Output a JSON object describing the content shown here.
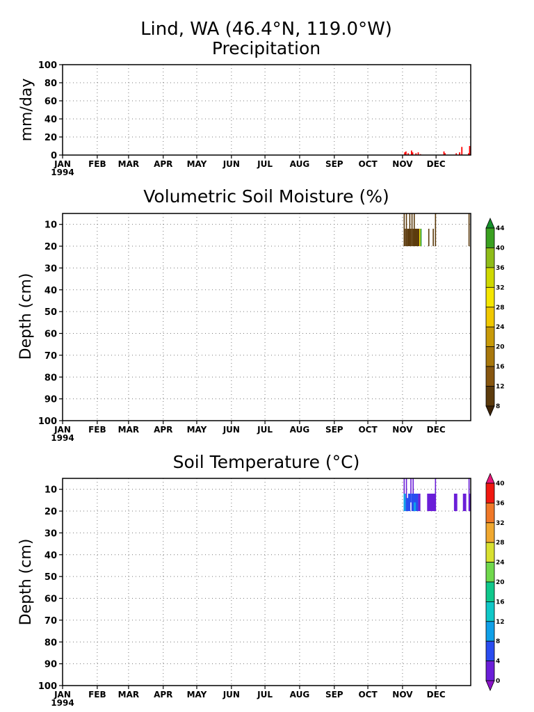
{
  "figure": {
    "title": "Lind, WA  (46.4°N, 119.0°W)",
    "year_label": "1994",
    "months": [
      "JAN",
      "FEB",
      "MAR",
      "APR",
      "MAY",
      "JUN",
      "JUL",
      "AUG",
      "SEP",
      "OCT",
      "NOV",
      "DEC"
    ]
  },
  "chart_data": [
    {
      "type": "bar",
      "title": "Precipitation",
      "ylabel": "mm/day",
      "xlabel": "",
      "ylim": [
        0,
        100
      ],
      "yticks": [
        0,
        20,
        40,
        60,
        80,
        100
      ],
      "grid": true,
      "bar_color": "#ff0000",
      "x_day_of_year": [
        306,
        307,
        309,
        312,
        313,
        316,
        318,
        320,
        341,
        342,
        352,
        355,
        357,
        363,
        364
      ],
      "values": [
        3,
        4,
        2,
        5,
        3,
        2,
        3,
        1,
        4,
        2,
        2,
        3,
        9,
        2,
        10
      ]
    },
    {
      "type": "heatmap",
      "title": "Volumetric Soil Moisture (%)",
      "ylabel": "Depth (cm)",
      "ylim": [
        100,
        5
      ],
      "yticks": [
        10,
        20,
        30,
        40,
        50,
        60,
        70,
        80,
        90,
        100
      ],
      "grid": true,
      "colorbar": {
        "levels": [
          8,
          12,
          16,
          20,
          24,
          28,
          32,
          36,
          40,
          44
        ],
        "colors": [
          "#3c2308",
          "#5c3b0d",
          "#87560f",
          "#a8770b",
          "#c89a08",
          "#f0c800",
          "#f5e600",
          "#cfd800",
          "#8fbc18",
          "#3aa020",
          "#16902a"
        ]
      },
      "cells": [
        {
          "d0": 305,
          "d1": 306,
          "z0": 5,
          "z1": 20,
          "value": 9
        },
        {
          "d0": 306,
          "d1": 307,
          "z0": 12,
          "z1": 20,
          "value": 9
        },
        {
          "d0": 307,
          "d1": 308,
          "z0": 5,
          "z1": 20,
          "value": 9
        },
        {
          "d0": 308,
          "d1": 312,
          "z0": 12,
          "z1": 20,
          "value": 9
        },
        {
          "d0": 310,
          "d1": 311,
          "z0": 5,
          "z1": 12,
          "value": 9
        },
        {
          "d0": 312,
          "d1": 313,
          "z0": 5,
          "z1": 20,
          "value": 9
        },
        {
          "d0": 313,
          "d1": 319,
          "z0": 12,
          "z1": 20,
          "value": 9
        },
        {
          "d0": 314,
          "d1": 315,
          "z0": 5,
          "z1": 12,
          "value": 9
        },
        {
          "d0": 319,
          "d1": 320,
          "z0": 12,
          "z1": 20,
          "value": 30
        },
        {
          "d0": 320,
          "d1": 321,
          "z0": 12,
          "z1": 20,
          "value": 44
        },
        {
          "d0": 327,
          "d1": 328,
          "z0": 12,
          "z1": 20,
          "value": 9
        },
        {
          "d0": 331,
          "d1": 332,
          "z0": 12,
          "z1": 20,
          "value": 9
        },
        {
          "d0": 333,
          "d1": 334,
          "z0": 5,
          "z1": 20,
          "value": 9
        },
        {
          "d0": 363,
          "d1": 364,
          "z0": 5,
          "z1": 20,
          "value": 9
        }
      ]
    },
    {
      "type": "heatmap",
      "title": "Soil Temperature (°C)",
      "ylabel": "Depth (cm)",
      "ylim": [
        100,
        5
      ],
      "yticks": [
        10,
        20,
        30,
        40,
        50,
        60,
        70,
        80,
        90,
        100
      ],
      "grid": true,
      "colorbar": {
        "levels": [
          0,
          4,
          8,
          12,
          16,
          20,
          24,
          28,
          32,
          36,
          40
        ],
        "colors": [
          "#8a14c8",
          "#6a1ed8",
          "#2a4cf0",
          "#10a0e8",
          "#10c8c8",
          "#10c88c",
          "#70d84c",
          "#d8e030",
          "#f0a830",
          "#f07828",
          "#f01810",
          "#e8187a"
        ]
      },
      "cells": [
        {
          "d0": 305,
          "d1": 306,
          "z0": 5,
          "z1": 20,
          "value": 2
        },
        {
          "d0": 305,
          "d1": 307,
          "z0": 12,
          "z1": 20,
          "value": 9
        },
        {
          "d0": 307,
          "d1": 308,
          "z0": 5,
          "z1": 20,
          "value": 2
        },
        {
          "d0": 307,
          "d1": 311,
          "z0": 14,
          "z1": 20,
          "value": 6
        },
        {
          "d0": 309,
          "d1": 312,
          "z0": 12,
          "z1": 16,
          "value": 6
        },
        {
          "d0": 311,
          "d1": 312,
          "z0": 5,
          "z1": 12,
          "value": 2
        },
        {
          "d0": 313,
          "d1": 314,
          "z0": 5,
          "z1": 12,
          "value": 2
        },
        {
          "d0": 312,
          "d1": 318,
          "z0": 12,
          "z1": 20,
          "value": 6
        },
        {
          "d0": 314,
          "d1": 316,
          "z0": 16,
          "z1": 20,
          "value": 9
        },
        {
          "d0": 318,
          "d1": 320,
          "z0": 12,
          "z1": 20,
          "value": 2
        },
        {
          "d0": 326,
          "d1": 328,
          "z0": 12,
          "z1": 20,
          "value": 2
        },
        {
          "d0": 328,
          "d1": 334,
          "z0": 12,
          "z1": 20,
          "value": 2
        },
        {
          "d0": 333,
          "d1": 334,
          "z0": 5,
          "z1": 12,
          "value": 2
        },
        {
          "d0": 350,
          "d1": 353,
          "z0": 12,
          "z1": 20,
          "value": 2
        },
        {
          "d0": 358,
          "d1": 361,
          "z0": 12,
          "z1": 20,
          "value": 2
        },
        {
          "d0": 363,
          "d1": 365,
          "z0": 12,
          "z1": 20,
          "value": 2
        },
        {
          "d0": 363,
          "d1": 364,
          "z0": 5,
          "z1": 12,
          "value": 2
        }
      ]
    }
  ]
}
